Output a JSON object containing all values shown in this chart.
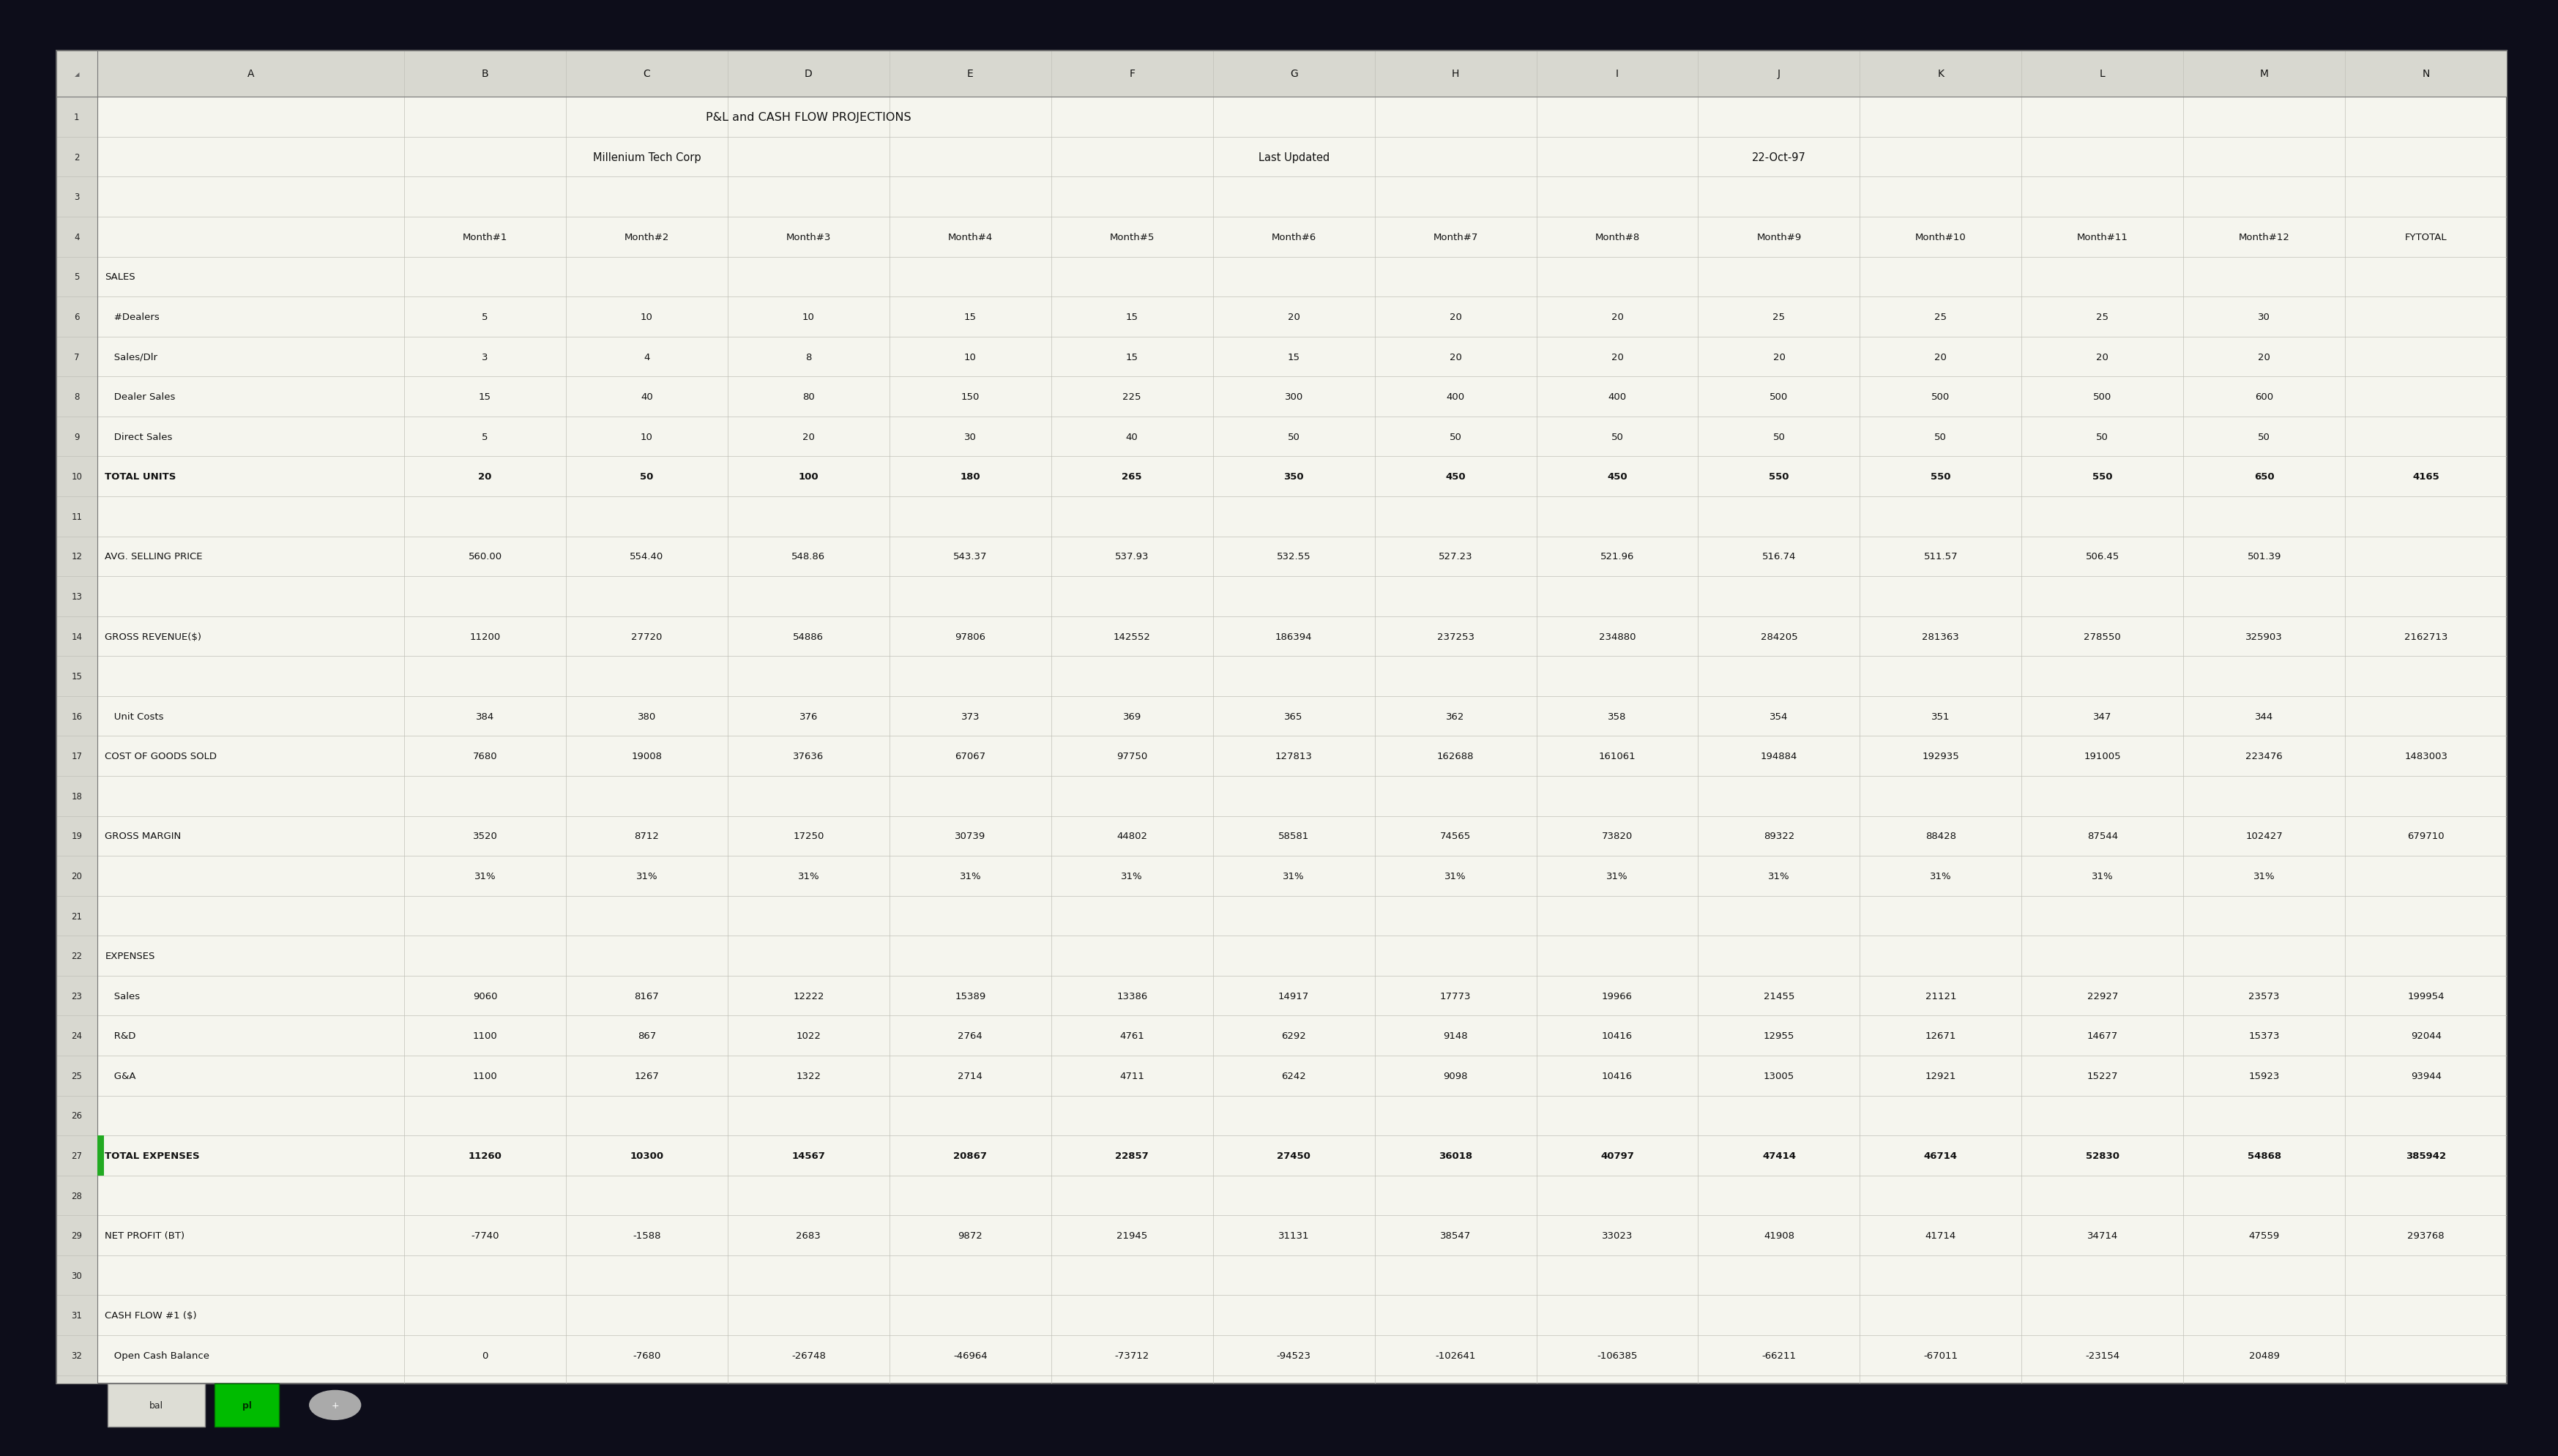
{
  "title1": "P&L and CASH FLOW PROJECTIONS",
  "title2": "Millenium Tech Corp",
  "last_updated_label": "Last Updated",
  "last_updated_value": "22-Oct-97",
  "rows": [
    {
      "row": 1,
      "label": "",
      "values": [
        "",
        "",
        "",
        "",
        "",
        "",
        "",
        "",
        "",
        "",
        "",
        "",
        ""
      ],
      "bold": false,
      "green_bar": false
    },
    {
      "row": 2,
      "label": "",
      "values": [
        "",
        "",
        "",
        "",
        "",
        "",
        "",
        "",
        "",
        "",
        "",
        "",
        ""
      ],
      "bold": false,
      "green_bar": false
    },
    {
      "row": 3,
      "label": "",
      "values": [
        "",
        "",
        "",
        "",
        "",
        "",
        "",
        "",
        "",
        "",
        "",
        "",
        ""
      ],
      "bold": false,
      "green_bar": false
    },
    {
      "row": 4,
      "label": "",
      "values": [
        "Month#1",
        "Month#2",
        "Month#3",
        "Month#4",
        "Month#5",
        "Month#6",
        "Month#7",
        "Month#8",
        "Month#9",
        "Month#10",
        "Month#11",
        "Month#12",
        "FYTOTAL"
      ],
      "bold": false,
      "green_bar": false
    },
    {
      "row": 5,
      "label": "SALES",
      "values": [
        "",
        "",
        "",
        "",
        "",
        "",
        "",
        "",
        "",
        "",
        "",
        "",
        ""
      ],
      "bold": false,
      "green_bar": false
    },
    {
      "row": 6,
      "label": "   #Dealers",
      "values": [
        "5",
        "10",
        "10",
        "15",
        "15",
        "20",
        "20",
        "20",
        "25",
        "25",
        "25",
        "30",
        ""
      ],
      "bold": false,
      "green_bar": false
    },
    {
      "row": 7,
      "label": "   Sales/Dlr",
      "values": [
        "3",
        "4",
        "8",
        "10",
        "15",
        "15",
        "20",
        "20",
        "20",
        "20",
        "20",
        "20",
        ""
      ],
      "bold": false,
      "green_bar": false
    },
    {
      "row": 8,
      "label": "   Dealer Sales",
      "values": [
        "15",
        "40",
        "80",
        "150",
        "225",
        "300",
        "400",
        "400",
        "500",
        "500",
        "500",
        "600",
        ""
      ],
      "bold": false,
      "green_bar": false
    },
    {
      "row": 9,
      "label": "   Direct Sales",
      "values": [
        "5",
        "10",
        "20",
        "30",
        "40",
        "50",
        "50",
        "50",
        "50",
        "50",
        "50",
        "50",
        ""
      ],
      "bold": false,
      "green_bar": false
    },
    {
      "row": 10,
      "label": "TOTAL UNITS",
      "values": [
        "20",
        "50",
        "100",
        "180",
        "265",
        "350",
        "450",
        "450",
        "550",
        "550",
        "550",
        "650",
        "4165"
      ],
      "bold": true,
      "green_bar": false
    },
    {
      "row": 11,
      "label": "",
      "values": [
        "",
        "",
        "",
        "",
        "",
        "",
        "",
        "",
        "",
        "",
        "",
        "",
        ""
      ],
      "bold": false,
      "green_bar": false
    },
    {
      "row": 12,
      "label": "AVG. SELLING PRICE",
      "values": [
        "560.00",
        "554.40",
        "548.86",
        "543.37",
        "537.93",
        "532.55",
        "527.23",
        "521.96",
        "516.74",
        "511.57",
        "506.45",
        "501.39",
        ""
      ],
      "bold": false,
      "green_bar": false
    },
    {
      "row": 13,
      "label": "",
      "values": [
        "",
        "",
        "",
        "",
        "",
        "",
        "",
        "",
        "",
        "",
        "",
        "",
        ""
      ],
      "bold": false,
      "green_bar": false
    },
    {
      "row": 14,
      "label": "GROSS REVENUE($)",
      "values": [
        "11200",
        "27720",
        "54886",
        "97806",
        "142552",
        "186394",
        "237253",
        "234880",
        "284205",
        "281363",
        "278550",
        "325903",
        "2162713"
      ],
      "bold": false,
      "green_bar": false
    },
    {
      "row": 15,
      "label": "",
      "values": [
        "",
        "",
        "",
        "",
        "",
        "",
        "",
        "",
        "",
        "",
        "",
        "",
        ""
      ],
      "bold": false,
      "green_bar": false
    },
    {
      "row": 16,
      "label": "   Unit Costs",
      "values": [
        "384",
        "380",
        "376",
        "373",
        "369",
        "365",
        "362",
        "358",
        "354",
        "351",
        "347",
        "344",
        ""
      ],
      "bold": false,
      "green_bar": false
    },
    {
      "row": 17,
      "label": "COST OF GOODS SOLD",
      "values": [
        "7680",
        "19008",
        "37636",
        "67067",
        "97750",
        "127813",
        "162688",
        "161061",
        "194884",
        "192935",
        "191005",
        "223476",
        "1483003"
      ],
      "bold": false,
      "green_bar": false
    },
    {
      "row": 18,
      "label": "",
      "values": [
        "",
        "",
        "",
        "",
        "",
        "",
        "",
        "",
        "",
        "",
        "",
        "",
        ""
      ],
      "bold": false,
      "green_bar": false
    },
    {
      "row": 19,
      "label": "GROSS MARGIN",
      "values": [
        "3520",
        "8712",
        "17250",
        "30739",
        "44802",
        "58581",
        "74565",
        "73820",
        "89322",
        "88428",
        "87544",
        "102427",
        "679710"
      ],
      "bold": false,
      "green_bar": false
    },
    {
      "row": 20,
      "label": "",
      "values": [
        "31%",
        "31%",
        "31%",
        "31%",
        "31%",
        "31%",
        "31%",
        "31%",
        "31%",
        "31%",
        "31%",
        "31%",
        ""
      ],
      "bold": false,
      "green_bar": false
    },
    {
      "row": 21,
      "label": "",
      "values": [
        "",
        "",
        "",
        "",
        "",
        "",
        "",
        "",
        "",
        "",
        "",
        "",
        ""
      ],
      "bold": false,
      "green_bar": false
    },
    {
      "row": 22,
      "label": "EXPENSES",
      "values": [
        "",
        "",
        "",
        "",
        "",
        "",
        "",
        "",
        "",
        "",
        "",
        "",
        ""
      ],
      "bold": false,
      "green_bar": false
    },
    {
      "row": 23,
      "label": "   Sales",
      "values": [
        "9060",
        "8167",
        "12222",
        "15389",
        "13386",
        "14917",
        "17773",
        "19966",
        "21455",
        "21121",
        "22927",
        "23573",
        "199954"
      ],
      "bold": false,
      "green_bar": false
    },
    {
      "row": 24,
      "label": "   R&D",
      "values": [
        "1100",
        "867",
        "1022",
        "2764",
        "4761",
        "6292",
        "9148",
        "10416",
        "12955",
        "12671",
        "14677",
        "15373",
        "92044"
      ],
      "bold": false,
      "green_bar": false
    },
    {
      "row": 25,
      "label": "   G&A",
      "values": [
        "1100",
        "1267",
        "1322",
        "2714",
        "4711",
        "6242",
        "9098",
        "10416",
        "13005",
        "12921",
        "15227",
        "15923",
        "93944"
      ],
      "bold": false,
      "green_bar": false
    },
    {
      "row": 26,
      "label": "",
      "values": [
        "",
        "",
        "",
        "",
        "",
        "",
        "",
        "",
        "",
        "",
        "",
        "",
        ""
      ],
      "bold": false,
      "green_bar": false
    },
    {
      "row": 27,
      "label": "TOTAL EXPENSES",
      "values": [
        "11260",
        "10300",
        "14567",
        "20867",
        "22857",
        "27450",
        "36018",
        "40797",
        "47414",
        "46714",
        "52830",
        "54868",
        "385942"
      ],
      "bold": true,
      "green_bar": true
    },
    {
      "row": 28,
      "label": "",
      "values": [
        "",
        "",
        "",
        "",
        "",
        "",
        "",
        "",
        "",
        "",
        "",
        "",
        ""
      ],
      "bold": false,
      "green_bar": false
    },
    {
      "row": 29,
      "label": "NET PROFIT (BT)",
      "values": [
        "-7740",
        "-1588",
        "2683",
        "9872",
        "21945",
        "31131",
        "38547",
        "33023",
        "41908",
        "41714",
        "34714",
        "47559",
        "293768"
      ],
      "bold": false,
      "green_bar": false
    },
    {
      "row": 30,
      "label": "",
      "values": [
        "",
        "",
        "",
        "",
        "",
        "",
        "",
        "",
        "",
        "",
        "",
        "",
        ""
      ],
      "bold": false,
      "green_bar": false
    },
    {
      "row": 31,
      "label": "CASH FLOW #1 ($)",
      "values": [
        "",
        "",
        "",
        "",
        "",
        "",
        "",
        "",
        "",
        "",
        "",
        "",
        ""
      ],
      "bold": false,
      "green_bar": false
    },
    {
      "row": 32,
      "label": "   Open Cash Balance",
      "values": [
        "0",
        "-7680",
        "-26748",
        "-46964",
        "-73712",
        "-94523",
        "-102641",
        "-106385",
        "-66211",
        "-67011",
        "-23154",
        "20489",
        ""
      ],
      "bold": false,
      "green_bar": false
    }
  ],
  "outer_bg": "#0d0d1a",
  "sheet_bg": "#f5f5ee",
  "col_header_bg": "#d8d8d0",
  "grid_color": "#c0c0b8",
  "text_color": "#111111"
}
